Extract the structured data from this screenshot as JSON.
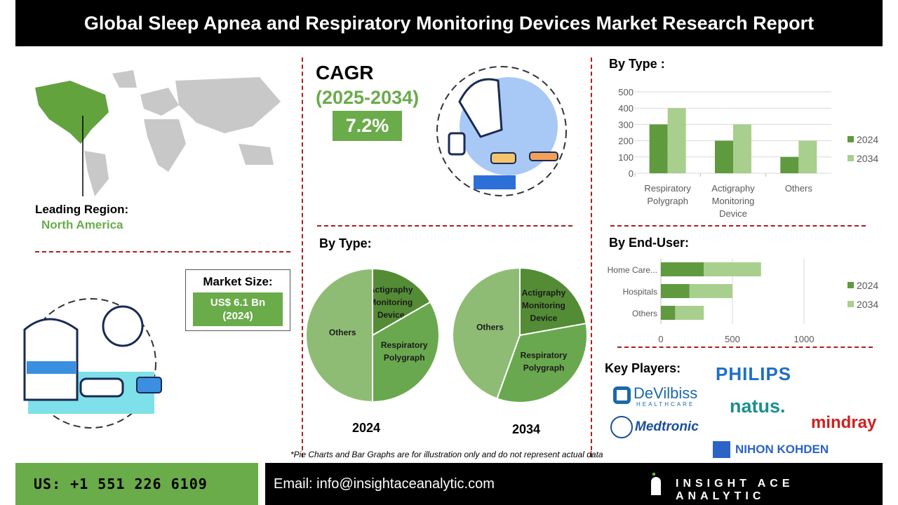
{
  "title": "Global Sleep Apnea and Respiratory Monitoring Devices Market Research Report",
  "region": {
    "label": "Leading Region:",
    "value": "North America"
  },
  "cagr": {
    "label": "CAGR",
    "period": "(2025-2034)",
    "value": "7.2%"
  },
  "market_size": {
    "label": "Market Size:",
    "value": "US$ 6.1 Bn",
    "year": "(2024)"
  },
  "sections": {
    "by_type_bar": "By Type :",
    "by_type_pie": "By Type:",
    "by_end_user": "By End-User:",
    "key_players": "Key Players:"
  },
  "key_players": [
    "PHILIPS",
    "DeVilbiss",
    "HEALTHCARE",
    "natus.",
    "Medtronic",
    "mindray",
    "NIHON KOHDEN"
  ],
  "disclaimer": "*Pie Charts and Bar Graphs are for illustration only and do not represent actual data",
  "footer": {
    "phone": "US: +1 551 226 6109",
    "email": "Email: info@insightaceanalytic.com",
    "brand": "INSIGHT ACE ANALYTIC"
  },
  "colors": {
    "dark": "#5f9a3e",
    "light": "#a8cf8d",
    "pie_others": "#8fbc74",
    "pie_resp": "#6aa84f",
    "pie_act": "#548c36"
  },
  "chart_data": [
    {
      "type": "bar",
      "title": "By Type :",
      "categories": [
        "Respiratory Polygraph",
        "Actigraphy Monitoring Device",
        "Others"
      ],
      "series": [
        {
          "name": "2024",
          "values": [
            300,
            200,
            100
          ]
        },
        {
          "name": "2034",
          "values": [
            400,
            300,
            200
          ]
        }
      ],
      "ylim": [
        0,
        500
      ],
      "yticks": [
        0,
        100,
        200,
        300,
        400,
        500
      ],
      "legend": "right",
      "grid": true
    },
    {
      "type": "bar",
      "orientation": "horizontal",
      "stacked": true,
      "title": "By End-User:",
      "categories": [
        "Home Care...",
        "Hospitals",
        "Others"
      ],
      "series": [
        {
          "name": "2024",
          "values": [
            300,
            200,
            100
          ]
        },
        {
          "name": "2034",
          "values": [
            400,
            300,
            200
          ]
        }
      ],
      "xlim": [
        0,
        1300
      ],
      "xticks": [
        0,
        500,
        1000
      ],
      "legend": "right"
    },
    {
      "type": "pie",
      "title": "2024",
      "labels": [
        "Actigraphy Monitoring Device",
        "Respiratory Polygraph",
        "Others"
      ],
      "values": [
        16.7,
        33.3,
        50
      ]
    },
    {
      "type": "pie",
      "title": "2034",
      "labels": [
        "Actigraphy Monitoring Device",
        "Respiratory Polygraph",
        "Others"
      ],
      "values": [
        22.2,
        33.3,
        44.5
      ]
    }
  ]
}
